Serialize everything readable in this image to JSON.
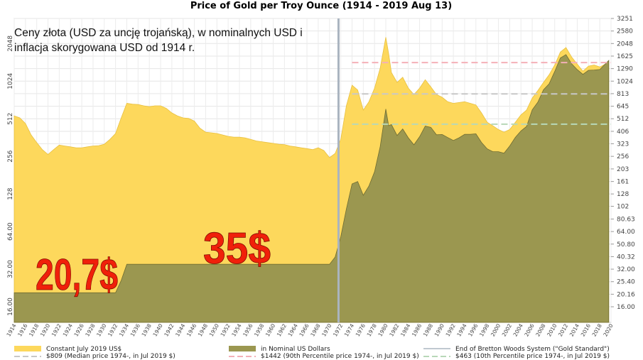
{
  "chart_data": {
    "type": "area",
    "title": "Price of Gold per Troy Ounce (1914 - 2019 Aug 13)",
    "annotation_lines": [
      "Ceny złota (USD za uncję trojańską), w nominalnych USD i",
      "inflacja skorygowana USD od 1914 r."
    ],
    "big_labels": [
      {
        "text": "20,7$",
        "x": 1922,
        "y": 21
      },
      {
        "text": "35$",
        "x": 1955,
        "y": 35
      }
    ],
    "y_scale": "log2",
    "ylim": [
      12,
      3251
    ],
    "y_ticks_left": [
      "16.00",
      "32.00",
      "64.00",
      "128",
      "256",
      "512",
      "1024",
      "2048"
    ],
    "y_ticks_right": [
      "3251",
      "2580",
      "2048",
      "1625",
      "1290",
      "1024",
      "813",
      "645",
      "512",
      "406",
      "323",
      "256",
      "203",
      "161",
      "128",
      "102",
      "80.63",
      "64.00",
      "50.80",
      "40.32",
      "32.00",
      "25.40",
      "20.16",
      "16.00"
    ],
    "x_ticks": [
      "1914",
      "1916",
      "1918",
      "1920",
      "1922",
      "1924",
      "1926",
      "1928",
      "1930",
      "1932",
      "1934",
      "1936",
      "1938",
      "1940",
      "1942",
      "1944",
      "1946",
      "1948",
      "1950",
      "1952",
      "1954",
      "1956",
      "1958",
      "1960",
      "1962",
      "1964",
      "1966",
      "1968",
      "1970",
      "1972",
      "1974",
      "1976",
      "1978",
      "1980",
      "1982",
      "1984",
      "1986",
      "1988",
      "1990",
      "1992",
      "1994",
      "1996",
      "1998",
      "2000",
      "2002",
      "2004",
      "2006",
      "2008",
      "2010",
      "2012",
      "2014",
      "2016",
      "2018",
      "2020"
    ],
    "xlim": [
      1914,
      2020
    ],
    "vertical_marker": {
      "x": 1971.6,
      "label": "End of Bretton Woods System (\"Gold Standard\")"
    },
    "hlines": [
      {
        "value": 809,
        "label": "$809 (Median price 1974-, in Jul 2019 $)",
        "color": "#c8c8c8"
      },
      {
        "value": 1442,
        "label": "$1442 (90th Percentile price 1974-, in Jul 2019 $)",
        "color": "#f4b0b8"
      },
      {
        "value": 463,
        "label": "$463 (10th Percentile price 1974-, in Jul 2019 $)",
        "color": "#b8d8b8"
      }
    ],
    "series": [
      {
        "name": "Constant July 2019 US$",
        "color": "#fdd85c",
        "x": [
          1914,
          1915,
          1916,
          1917,
          1918,
          1919,
          1920,
          1921,
          1922,
          1923,
          1924,
          1925,
          1926,
          1927,
          1928,
          1929,
          1930,
          1931,
          1932,
          1933,
          1934,
          1935,
          1936,
          1937,
          1938,
          1939,
          1940,
          1941,
          1942,
          1943,
          1944,
          1945,
          1946,
          1947,
          1948,
          1949,
          1950,
          1951,
          1952,
          1953,
          1954,
          1955,
          1956,
          1957,
          1958,
          1959,
          1960,
          1961,
          1962,
          1963,
          1964,
          1965,
          1966,
          1967,
          1968,
          1969,
          1970,
          1971,
          1972,
          1973,
          1974,
          1975,
          1976,
          1977,
          1978,
          1979,
          1980,
          1980.5,
          1981,
          1982,
          1983,
          1984,
          1985,
          1986,
          1987,
          1988,
          1989,
          1990,
          1991,
          1992,
          1993,
          1994,
          1995,
          1996,
          1997,
          1998,
          1999,
          2000,
          2001,
          2002,
          2003,
          2004,
          2005,
          2006,
          2007,
          2008,
          2009,
          2010,
          2011,
          2012,
          2013,
          2014,
          2015,
          2016,
          2017,
          2018,
          2019.6
        ],
        "values": [
          540,
          520,
          470,
          380,
          330,
          290,
          265,
          290,
          315,
          310,
          305,
          300,
          300,
          305,
          310,
          312,
          320,
          350,
          390,
          520,
          680,
          670,
          665,
          650,
          640,
          650,
          650,
          620,
          570,
          540,
          520,
          515,
          490,
          430,
          400,
          395,
          390,
          380,
          370,
          365,
          365,
          360,
          350,
          340,
          335,
          330,
          325,
          320,
          318,
          310,
          305,
          300,
          295,
          290,
          300,
          285,
          250,
          270,
          350,
          650,
          950,
          870,
          600,
          700,
          900,
          1300,
          2300,
          1700,
          1200,
          1000,
          1100,
          900,
          800,
          900,
          1050,
          920,
          800,
          760,
          700,
          680,
          690,
          700,
          680,
          660,
          570,
          480,
          450,
          420,
          400,
          420,
          480,
          550,
          600,
          750,
          860,
          1000,
          1150,
          1380,
          1750,
          1900,
          1600,
          1400,
          1230,
          1350,
          1380,
          1330,
          1450
        ]
      },
      {
        "name": "in Nominal US Dollars",
        "color": "#9b9750",
        "x": [
          1914,
          1917,
          1920,
          1925,
          1930,
          1932,
          1933,
          1934,
          1970,
          1971,
          1972,
          1973,
          1974,
          1975,
          1976,
          1977,
          1978,
          1979,
          1980,
          1980.5,
          1981,
          1982,
          1983,
          1984,
          1985,
          1986,
          1987,
          1988,
          1989,
          1990,
          1991,
          1992,
          1993,
          1994,
          1995,
          1996,
          1997,
          1998,
          1999,
          2000,
          2001,
          2002,
          2003,
          2004,
          2005,
          2006,
          2007,
          2008,
          2009,
          2010,
          2011,
          2012,
          2013,
          2014,
          2015,
          2016,
          2017,
          2018,
          2019.6
        ],
        "values": [
          20.7,
          20.7,
          20.7,
          20.7,
          20.7,
          20.7,
          26,
          35,
          35,
          40,
          58,
          97,
          154,
          161,
          125,
          148,
          193,
          306,
          612,
          450,
          460,
          376,
          424,
          360,
          317,
          368,
          447,
          437,
          381,
          383,
          362,
          343,
          360,
          384,
          384,
          388,
          331,
          294,
          279,
          279,
          271,
          310,
          363,
          409,
          444,
          603,
          695,
          872,
          972,
          1224,
          1571,
          1669,
          1411,
          1266,
          1160,
          1250,
          1257,
          1268,
          1500
        ]
      }
    ]
  }
}
